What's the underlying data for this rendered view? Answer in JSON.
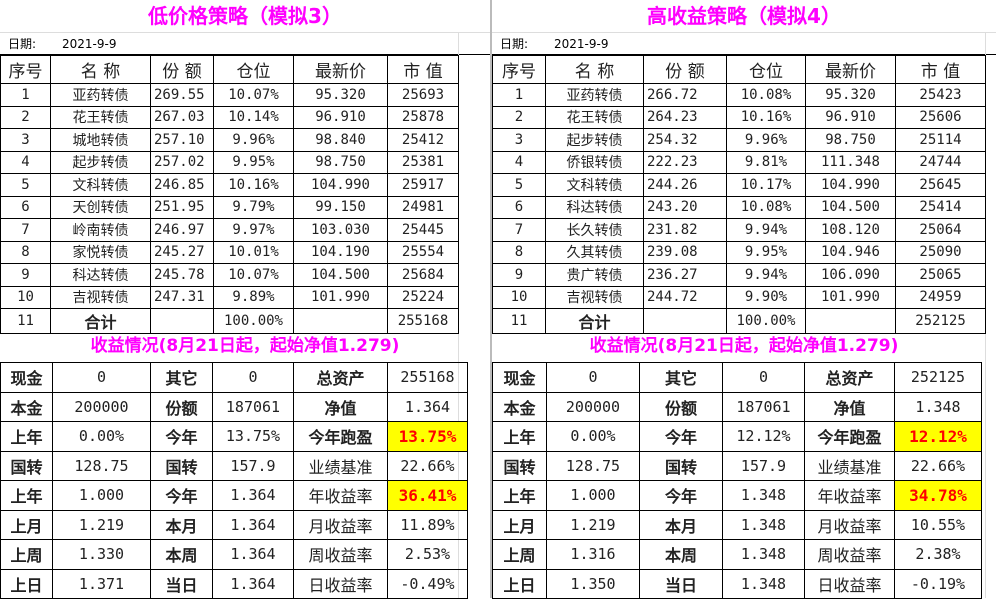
{
  "headers": [
    "序号",
    "名 称",
    "份 额",
    "仓位",
    "最新价",
    "市 值"
  ],
  "date_label": "日期:",
  "subtitle": "收益情况(8月21日起，起始净值1.279)",
  "highlight_colors": {
    "background": "#ffff00",
    "text": "#ff0000",
    "title": "#ff00ff"
  },
  "panels": [
    {
      "title": "低价格策略（模拟3）",
      "date": "2021-9-9",
      "rows": [
        [
          "1",
          "亚药转债",
          "269.55",
          "10.07%",
          "95.320",
          "25693"
        ],
        [
          "2",
          "花王转债",
          "267.03",
          "10.14%",
          "96.910",
          "25878"
        ],
        [
          "3",
          "城地转债",
          "257.10",
          "9.96%",
          "98.840",
          "25412"
        ],
        [
          "4",
          "起步转债",
          "257.02",
          "9.95%",
          "98.750",
          "25381"
        ],
        [
          "5",
          "文科转债",
          "246.85",
          "10.16%",
          "104.990",
          "25917"
        ],
        [
          "6",
          "天创转债",
          "251.95",
          "9.79%",
          "99.150",
          "24981"
        ],
        [
          "7",
          "岭南转债",
          "246.97",
          "9.97%",
          "103.030",
          "25445"
        ],
        [
          "8",
          "家悦转债",
          "245.27",
          "10.01%",
          "104.190",
          "25554"
        ],
        [
          "9",
          "科达转债",
          "245.78",
          "10.07%",
          "104.500",
          "25684"
        ],
        [
          "10",
          "吉视转债",
          "247.31",
          "9.89%",
          "101.990",
          "25224"
        ],
        [
          "11",
          "合计",
          "",
          "100.00%",
          "",
          "255168"
        ]
      ],
      "stats": [
        [
          "现金",
          "0",
          "其它",
          "0",
          "总资产",
          "255168"
        ],
        [
          "本金",
          "200000",
          "份额",
          "187061",
          "净值",
          "1.364"
        ],
        [
          "上年",
          "0.00%",
          "今年",
          "13.75%",
          "今年跑盈",
          "13.75%"
        ],
        [
          "国转",
          "128.75",
          "国转",
          "157.9",
          "业绩基准",
          "22.66%"
        ],
        [
          "上年",
          "1.000",
          "今年",
          "1.364",
          "年收益率",
          "36.41%"
        ],
        [
          "上月",
          "1.219",
          "本月",
          "1.364",
          "月收益率",
          "11.89%"
        ],
        [
          "上周",
          "1.330",
          "本周",
          "1.364",
          "周收益率",
          "2.53%"
        ],
        [
          "上日",
          "1.371",
          "当日",
          "1.364",
          "日收益率",
          "-0.49%"
        ]
      ]
    },
    {
      "title": "高收益策略（模拟4）",
      "date": "2021-9-9",
      "rows": [
        [
          "1",
          "亚药转债",
          "266.72",
          "10.08%",
          "95.320",
          "25423"
        ],
        [
          "2",
          "花王转债",
          "264.23",
          "10.16%",
          "96.910",
          "25606"
        ],
        [
          "3",
          "起步转债",
          "254.32",
          "9.96%",
          "98.750",
          "25114"
        ],
        [
          "4",
          "侨银转债",
          "222.23",
          "9.81%",
          "111.348",
          "24744"
        ],
        [
          "5",
          "文科转债",
          "244.26",
          "10.17%",
          "104.990",
          "25645"
        ],
        [
          "6",
          "科达转债",
          "243.20",
          "10.08%",
          "104.500",
          "25414"
        ],
        [
          "7",
          "长久转债",
          "231.82",
          "9.94%",
          "108.120",
          "25064"
        ],
        [
          "8",
          "久其转债",
          "239.08",
          "9.95%",
          "104.946",
          "25090"
        ],
        [
          "9",
          "贵广转债",
          "236.27",
          "9.94%",
          "106.090",
          "25065"
        ],
        [
          "10",
          "吉视转债",
          "244.72",
          "9.90%",
          "101.990",
          "24959"
        ],
        [
          "11",
          "合计",
          "",
          "100.00%",
          "",
          "252125"
        ]
      ],
      "stats": [
        [
          "现金",
          "0",
          "其它",
          "0",
          "总资产",
          "252125"
        ],
        [
          "本金",
          "200000",
          "份额",
          "187061",
          "净值",
          "1.348"
        ],
        [
          "上年",
          "0.00%",
          "今年",
          "12.12%",
          "今年跑盈",
          "12.12%"
        ],
        [
          "国转",
          "128.75",
          "国转",
          "157.9",
          "业绩基准",
          "22.66%"
        ],
        [
          "上年",
          "1.000",
          "今年",
          "1.348",
          "年收益率",
          "34.78%"
        ],
        [
          "上月",
          "1.219",
          "本月",
          "1.348",
          "月收益率",
          "10.55%"
        ],
        [
          "上周",
          "1.316",
          "本周",
          "1.348",
          "周收益率",
          "2.38%"
        ],
        [
          "上日",
          "1.350",
          "当日",
          "1.348",
          "日收益率",
          "-0.19%"
        ]
      ]
    }
  ]
}
